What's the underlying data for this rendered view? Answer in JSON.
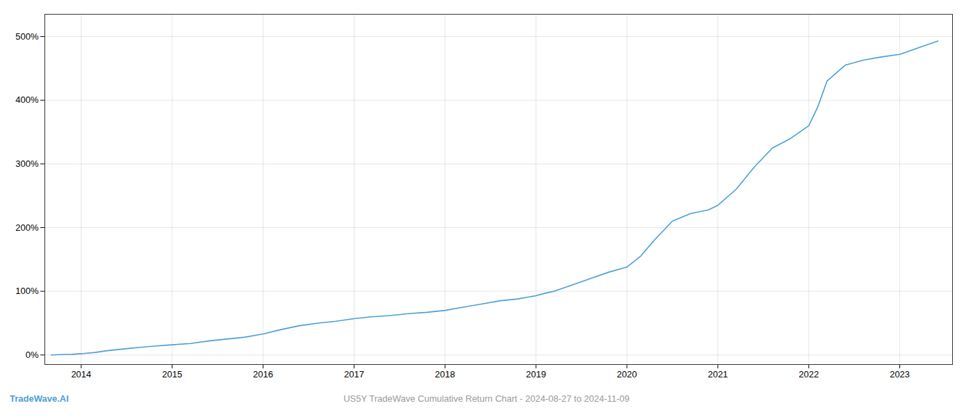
{
  "chart_data": {
    "type": "line",
    "x": [
      2013.67,
      2013.75,
      2013.9,
      2014.0,
      2014.15,
      2014.3,
      2014.5,
      2014.65,
      2014.8,
      2015.0,
      2015.2,
      2015.4,
      2015.6,
      2015.8,
      2016.0,
      2016.2,
      2016.4,
      2016.6,
      2016.8,
      2017.0,
      2017.2,
      2017.4,
      2017.6,
      2017.8,
      2018.0,
      2018.2,
      2018.4,
      2018.6,
      2018.8,
      2019.0,
      2019.1,
      2019.2,
      2019.4,
      2019.6,
      2019.8,
      2020.0,
      2020.15,
      2020.3,
      2020.5,
      2020.7,
      2020.9,
      2021.0,
      2021.2,
      2021.4,
      2021.6,
      2021.8,
      2022.0,
      2022.1,
      2022.2,
      2022.4,
      2022.6,
      2022.8,
      2023.0,
      2023.2,
      2023.42
    ],
    "values": [
      0,
      0.5,
      1,
      2,
      4,
      7,
      10,
      12,
      14,
      16,
      18,
      22,
      25,
      28,
      33,
      40,
      46,
      50,
      53,
      57,
      60,
      62,
      65,
      67,
      70,
      75,
      80,
      85,
      88,
      93,
      97,
      100,
      110,
      120,
      130,
      138,
      155,
      180,
      210,
      222,
      228,
      235,
      260,
      295,
      325,
      340,
      360,
      390,
      430,
      455,
      463,
      468,
      472,
      482,
      493
    ],
    "color": "#4a9fd4",
    "xlim": [
      2013.6,
      2023.58
    ],
    "xticks": [
      2014,
      2015,
      2016,
      2017,
      2018,
      2019,
      2020,
      2021,
      2022,
      2023
    ],
    "ylim": [
      -15,
      535
    ],
    "yticks": [
      {
        "value": 0,
        "label": "0%"
      },
      {
        "value": 100,
        "label": "100%"
      },
      {
        "value": 200,
        "label": "200%"
      },
      {
        "value": 300,
        "label": "300%"
      },
      {
        "value": 400,
        "label": "400%"
      },
      {
        "value": 500,
        "label": "500%"
      }
    ],
    "grid": true,
    "annotations": [
      "TradeWave.AI",
      "US5Y TradeWave Cumulative Return Chart - 2024-08-27 to 2024-11-09"
    ]
  }
}
